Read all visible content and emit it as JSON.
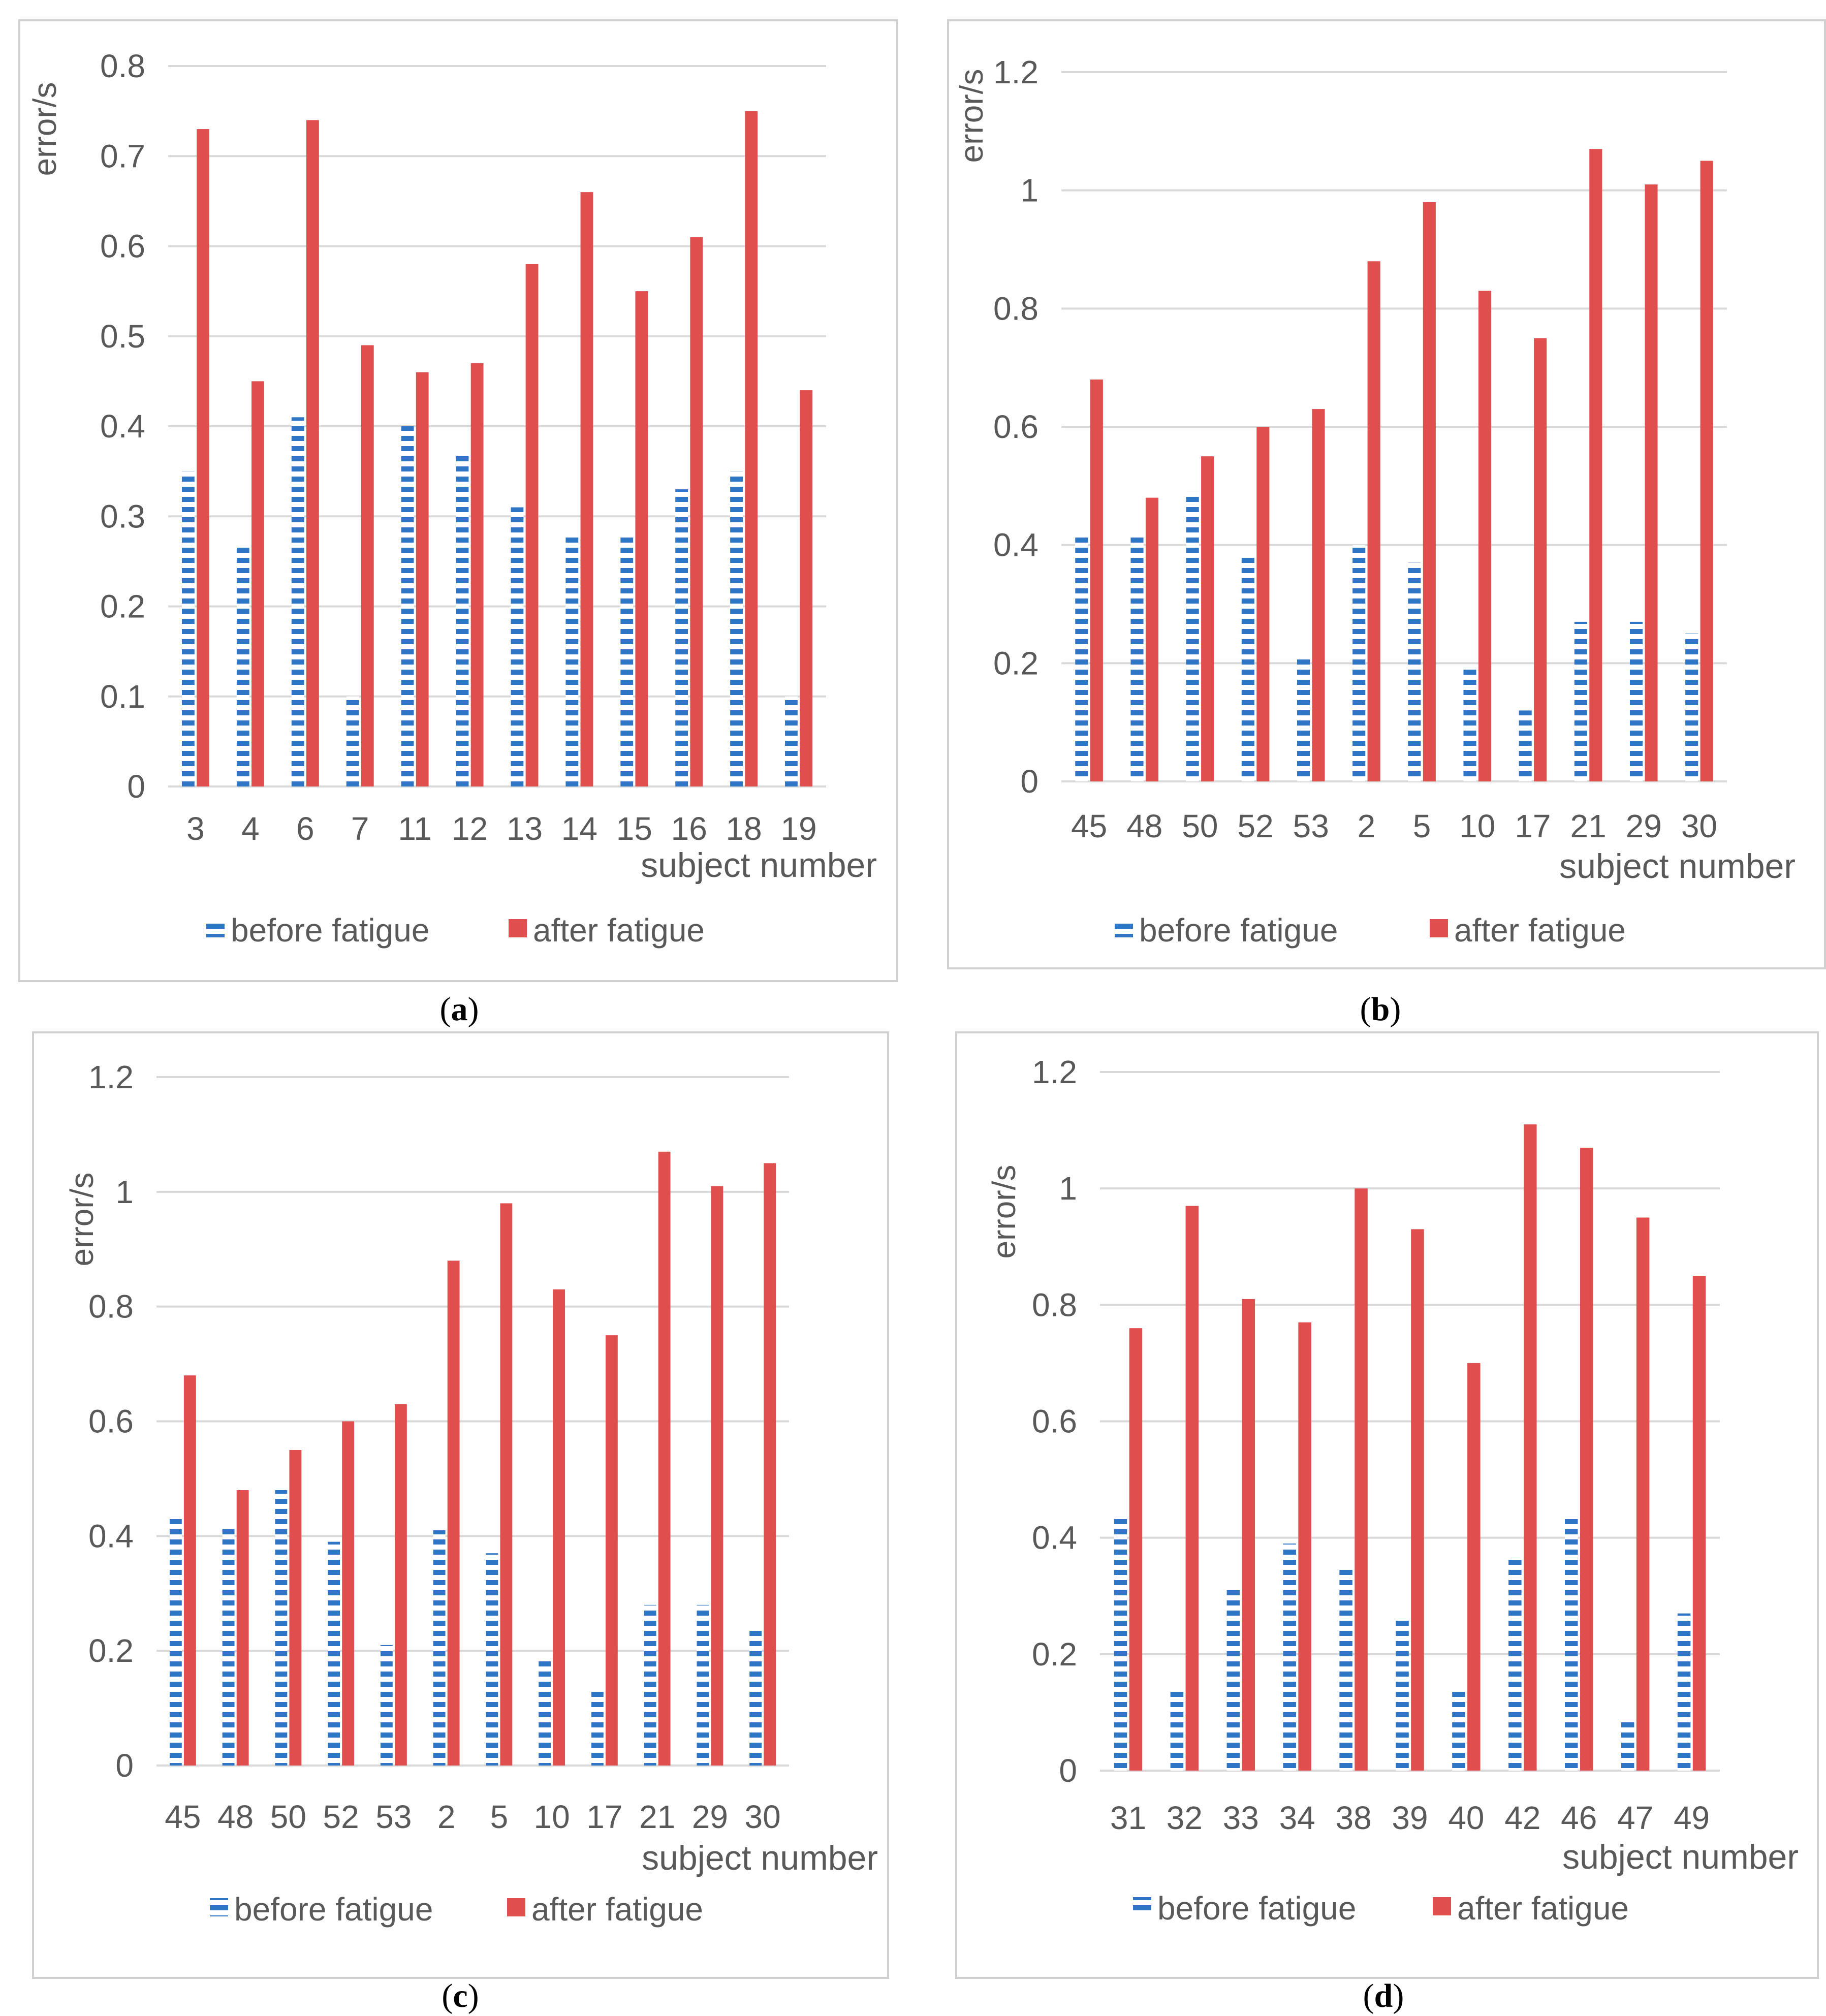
{
  "colors": {
    "before": "#2f75c5",
    "after": "#e04e4e",
    "grid": "#d9d9d9",
    "text": "#595959"
  },
  "chart_data": [
    {
      "type": "bar",
      "caption": "a",
      "ylabel": "error/s",
      "xlabel": "subject number",
      "ylim": [
        0,
        0.8
      ],
      "yticks": [
        0,
        0.1,
        0.2,
        0.3,
        0.4,
        0.5,
        0.6,
        0.7,
        0.8
      ],
      "legend_position": "bottom",
      "categories": [
        "3",
        "4",
        "6",
        "7",
        "11",
        "12",
        "13",
        "14",
        "15",
        "16",
        "18",
        "19"
      ],
      "series": [
        {
          "name": "before fatigue",
          "values": [
            0.35,
            0.27,
            0.41,
            0.1,
            0.4,
            0.37,
            0.31,
            0.28,
            0.28,
            0.33,
            0.35,
            0.1
          ]
        },
        {
          "name": "after fatigue",
          "values": [
            0.73,
            0.45,
            0.74,
            0.49,
            0.46,
            0.47,
            0.58,
            0.66,
            0.55,
            0.61,
            0.75,
            0.44
          ]
        }
      ]
    },
    {
      "type": "bar",
      "caption": "b",
      "ylabel": "error/s",
      "xlabel": "subject number",
      "ylim": [
        0,
        1.2
      ],
      "yticks": [
        0,
        0.2,
        0.4,
        0.6,
        0.8,
        1,
        1.2
      ],
      "legend_position": "bottom",
      "categories": [
        "45",
        "48",
        "50",
        "52",
        "53",
        "2",
        "5",
        "10",
        "17",
        "21",
        "29",
        "30"
      ],
      "series": [
        {
          "name": "before fatigue",
          "values": [
            0.42,
            0.42,
            0.49,
            0.38,
            0.21,
            0.4,
            0.37,
            0.19,
            0.12,
            0.27,
            0.27,
            0.25
          ]
        },
        {
          "name": "after fatigue",
          "values": [
            0.68,
            0.48,
            0.55,
            0.6,
            0.63,
            0.88,
            0.98,
            0.83,
            0.75,
            1.07,
            1.01,
            1.05
          ]
        }
      ]
    },
    {
      "type": "bar",
      "caption": "c",
      "ylabel": "error/s",
      "xlabel": "subject number",
      "ylim": [
        0,
        1.2
      ],
      "yticks": [
        0,
        0.2,
        0.4,
        0.6,
        0.8,
        1,
        1.2
      ],
      "legend_position": "bottom",
      "categories": [
        "45",
        "48",
        "50",
        "52",
        "53",
        "2",
        "5",
        "10",
        "17",
        "21",
        "29",
        "30"
      ],
      "series": [
        {
          "name": "before fatigue",
          "values": [
            0.43,
            0.42,
            0.48,
            0.39,
            0.21,
            0.41,
            0.37,
            0.19,
            0.13,
            0.28,
            0.28,
            0.24
          ]
        },
        {
          "name": "after fatigue",
          "values": [
            0.68,
            0.48,
            0.55,
            0.6,
            0.63,
            0.88,
            0.98,
            0.83,
            0.75,
            1.07,
            1.01,
            1.05
          ]
        }
      ]
    },
    {
      "type": "bar",
      "caption": "d",
      "ylabel": "error/s",
      "xlabel": "subject number",
      "ylim": [
        0,
        1.2
      ],
      "yticks": [
        0,
        0.2,
        0.4,
        0.6,
        0.8,
        1,
        1.2
      ],
      "legend_position": "bottom",
      "categories": [
        "31",
        "32",
        "33",
        "34",
        "38",
        "39",
        "40",
        "42",
        "46",
        "47",
        "49"
      ],
      "series": [
        {
          "name": "before fatigue",
          "values": [
            0.44,
            0.14,
            0.31,
            0.39,
            0.35,
            0.26,
            0.14,
            0.37,
            0.44,
            0.09,
            0.27
          ]
        },
        {
          "name": "after fatigue",
          "values": [
            0.76,
            0.97,
            0.81,
            0.77,
            1.0,
            0.93,
            0.7,
            1.11,
            1.07,
            0.95,
            0.85
          ]
        }
      ]
    }
  ]
}
